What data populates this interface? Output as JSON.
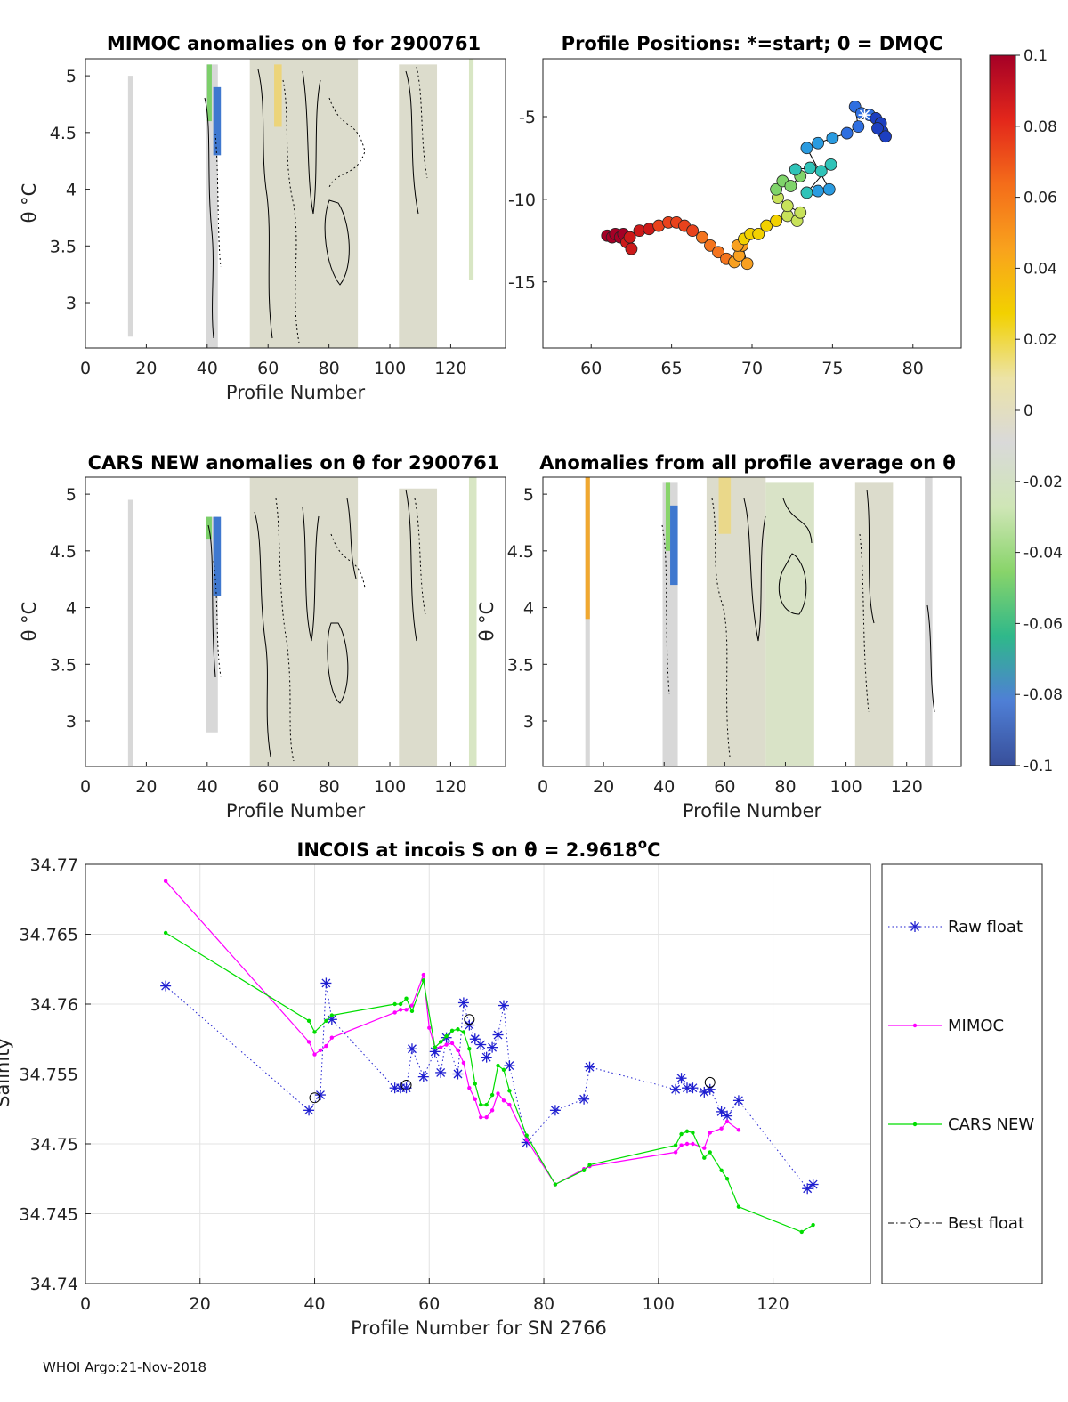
{
  "footer": "WHOI Argo:21-Nov-2018",
  "colorbar": {
    "ticks": [
      "0.1",
      "0.08",
      "0.06",
      "0.04",
      "0.02",
      "0",
      "-0.02",
      "-0.04",
      "-0.06",
      "-0.08",
      "-0.1"
    ],
    "stops": [
      "#a50026",
      "#e3271b",
      "#f46d1a",
      "#f9a21d",
      "#f2d100",
      "#ece3a6",
      "#d9d9d9",
      "#cfe6b6",
      "#88d46a",
      "#2fb88a",
      "#4f7fd6",
      "#384f9a"
    ]
  },
  "chart_data": [
    {
      "id": "mimoc",
      "type": "heatmap",
      "title": "MIMOC anomalies on θ  for 2900761",
      "xlabel": "Profile Number",
      "ylabel": "θ °C",
      "xlim": [
        0,
        138
      ],
      "ylim": [
        2.6,
        5.15
      ],
      "xticks": [
        "0",
        "20",
        "40",
        "60",
        "80",
        "100",
        "120"
      ],
      "yticks": [
        "3",
        "3.5",
        "4",
        "4.5",
        "5"
      ],
      "columns": [
        {
          "x0": 14,
          "x1": 15.5,
          "top": 5.0,
          "bottom": 2.7,
          "color": "#d8d8d8"
        },
        {
          "x0": 39.5,
          "x1": 43.5,
          "top": 5.1,
          "bottom": 2.6,
          "color": "#d8d8d8"
        },
        {
          "x0": 40,
          "x1": 41.5,
          "top": 5.1,
          "bottom": 4.6,
          "color": "#7ccf6a"
        },
        {
          "x0": 42,
          "x1": 44.5,
          "top": 4.9,
          "bottom": 4.3,
          "color": "#3f78cf"
        },
        {
          "x0": 54,
          "x1": 89.5,
          "top": 5.15,
          "bottom": 2.6,
          "color": "#dcdccc"
        },
        {
          "x0": 62,
          "x1": 64.5,
          "top": 5.1,
          "bottom": 4.55,
          "color": "#ecd47a"
        },
        {
          "x0": 103,
          "x1": 115.5,
          "top": 5.1,
          "bottom": 2.6,
          "color": "#dcdccc"
        },
        {
          "x0": 126,
          "x1": 127.5,
          "top": 5.15,
          "bottom": 3.2,
          "color": "#d8e6c4"
        }
      ]
    },
    {
      "id": "positions",
      "type": "scatter",
      "title": "Profile Positions: *=start; 0 = DMQC",
      "xlim": [
        57,
        83
      ],
      "ylim": [
        -19,
        -1.5
      ],
      "xticks": [
        "60",
        "65",
        "70",
        "75",
        "80"
      ],
      "yticks": [
        "-5",
        "-10",
        "-15"
      ],
      "points": [
        [
          61,
          -12.2
        ],
        [
          61.3,
          -12.3
        ],
        [
          61.5,
          -12.1
        ],
        [
          61.8,
          -12.3
        ],
        [
          62,
          -12.1
        ],
        [
          62.2,
          -12.6
        ],
        [
          62.5,
          -13
        ],
        [
          62.4,
          -12.3
        ],
        [
          63,
          -11.9
        ],
        [
          63.6,
          -11.8
        ],
        [
          64.2,
          -11.6
        ],
        [
          64.8,
          -11.4
        ],
        [
          65.3,
          -11.4
        ],
        [
          65.8,
          -11.6
        ],
        [
          66.3,
          -11.9
        ],
        [
          66.9,
          -12.3
        ],
        [
          67.4,
          -12.8
        ],
        [
          67.9,
          -13.2
        ],
        [
          68.4,
          -13.6
        ],
        [
          68.9,
          -13.8
        ],
        [
          69.2,
          -13.4
        ],
        [
          69.4,
          -12.8
        ],
        [
          69.7,
          -13.9
        ],
        [
          69.1,
          -12.8
        ],
        [
          69.5,
          -12.4
        ],
        [
          69.9,
          -12.1
        ],
        [
          70.4,
          -12.1
        ],
        [
          70.9,
          -11.6
        ],
        [
          71.5,
          -11.3
        ],
        [
          72.2,
          -11
        ],
        [
          72.8,
          -11.3
        ],
        [
          73,
          -10.8
        ],
        [
          72.2,
          -10.4
        ],
        [
          71.6,
          -9.9
        ],
        [
          71.5,
          -9.4
        ],
        [
          71.9,
          -8.9
        ],
        [
          72.4,
          -9.2
        ],
        [
          73,
          -8.6
        ],
        [
          72.7,
          -8.2
        ],
        [
          73.6,
          -8.1
        ],
        [
          74.3,
          -8.3
        ],
        [
          74.9,
          -7.9
        ],
        [
          73.4,
          -9.6
        ],
        [
          74.1,
          -9.5
        ],
        [
          74.8,
          -9.4
        ],
        [
          73.4,
          -6.9
        ],
        [
          74.1,
          -6.6
        ],
        [
          75,
          -6.3
        ],
        [
          75.9,
          -6
        ],
        [
          76.6,
          -5.6
        ],
        [
          76.4,
          -4.4
        ],
        [
          76.8,
          -4.8
        ],
        [
          77.3,
          -4.9
        ],
        [
          77.7,
          -5.1
        ],
        [
          78,
          -5.4
        ],
        [
          78.1,
          -5.9
        ],
        [
          78.3,
          -6.2
        ],
        [
          77.8,
          -5.7
        ]
      ],
      "start_marker": [
        77,
        -4.9
      ]
    },
    {
      "id": "cars",
      "type": "heatmap",
      "title": "CARS NEW anomalies on θ for 2900761",
      "xlabel": "Profile Number",
      "ylabel": "θ °C",
      "xlim": [
        0,
        138
      ],
      "ylim": [
        2.6,
        5.15
      ],
      "xticks": [
        "0",
        "20",
        "40",
        "60",
        "80",
        "100",
        "120"
      ],
      "yticks": [
        "3",
        "3.5",
        "4",
        "4.5",
        "5"
      ],
      "columns": [
        {
          "x0": 14,
          "x1": 15.5,
          "top": 4.95,
          "bottom": 2.6,
          "color": "#d8d8d8"
        },
        {
          "x0": 39.5,
          "x1": 43.5,
          "top": 4.8,
          "bottom": 2.9,
          "color": "#d8d8d8"
        },
        {
          "x0": 39.5,
          "x1": 41.5,
          "top": 4.8,
          "bottom": 4.6,
          "color": "#7ccf6a"
        },
        {
          "x0": 42,
          "x1": 44.5,
          "top": 4.8,
          "bottom": 4.1,
          "color": "#3f78cf"
        },
        {
          "x0": 54,
          "x1": 89.5,
          "top": 5.15,
          "bottom": 2.6,
          "color": "#dcdccc"
        },
        {
          "x0": 103,
          "x1": 115.5,
          "top": 5.05,
          "bottom": 2.6,
          "color": "#dcdccc"
        },
        {
          "x0": 126,
          "x1": 128.5,
          "top": 5.15,
          "bottom": 2.6,
          "color": "#d8e6c4"
        }
      ]
    },
    {
      "id": "allavg",
      "type": "heatmap",
      "title": "Anomalies from all profile average on θ",
      "xlabel": "Profile Number",
      "ylabel": "θ °C",
      "xlim": [
        0,
        138
      ],
      "ylim": [
        2.6,
        5.15
      ],
      "xticks": [
        "0",
        "20",
        "40",
        "60",
        "80",
        "100",
        "120"
      ],
      "yticks": [
        "3",
        "3.5",
        "4",
        "4.5",
        "5"
      ],
      "columns": [
        {
          "x0": 14,
          "x1": 15.5,
          "top": 5.15,
          "bottom": 2.6,
          "color": "#d8d8d8"
        },
        {
          "x0": 14,
          "x1": 15.5,
          "top": 5.15,
          "bottom": 3.9,
          "color": "#f0a830"
        },
        {
          "x0": 39.5,
          "x1": 44.5,
          "top": 5.1,
          "bottom": 2.6,
          "color": "#d8d8d8"
        },
        {
          "x0": 40.5,
          "x1": 42,
          "top": 5.1,
          "bottom": 4.5,
          "color": "#88d46a"
        },
        {
          "x0": 42,
          "x1": 44.5,
          "top": 4.9,
          "bottom": 4.2,
          "color": "#3f78cf"
        },
        {
          "x0": 54,
          "x1": 73.5,
          "top": 5.15,
          "bottom": 2.6,
          "color": "#dcdccc"
        },
        {
          "x0": 58,
          "x1": 62,
          "top": 5.15,
          "bottom": 4.65,
          "color": "#ead88a"
        },
        {
          "x0": 73.5,
          "x1": 89.5,
          "top": 5.1,
          "bottom": 2.6,
          "color": "#d9e3c7"
        },
        {
          "x0": 103,
          "x1": 115.5,
          "top": 5.1,
          "bottom": 2.6,
          "color": "#dcdccc"
        },
        {
          "x0": 126,
          "x1": 128.5,
          "top": 5.15,
          "bottom": 2.6,
          "color": "#d8d8d8"
        }
      ]
    },
    {
      "id": "incois",
      "type": "line",
      "title": "INCOIS at incois S on θ = 2.9618",
      "title_sup": "o",
      "title_unit": "C",
      "xlabel": "Profile Number for SN 2766",
      "ylabel": "Salinity",
      "xlim": [
        0,
        137
      ],
      "ylim": [
        34.74,
        34.77
      ],
      "xticks": [
        "0",
        "20",
        "40",
        "60",
        "80",
        "100",
        "120"
      ],
      "yticks": [
        "34.74",
        "34.745",
        "34.75",
        "34.755",
        "34.76",
        "34.765",
        "34.77"
      ],
      "series": [
        {
          "name": "Raw float",
          "color": "#1f1fd0",
          "x": [
            14,
            39,
            41,
            42,
            43,
            54,
            55,
            56,
            57,
            59,
            61,
            62,
            63,
            65,
            66,
            67,
            68,
            69,
            70,
            71,
            72,
            73,
            74,
            77,
            82,
            87,
            88,
            103,
            104,
            105,
            106,
            108,
            109,
            111,
            112,
            114,
            126,
            127
          ],
          "y": [
            34.7613,
            34.7524,
            34.7535,
            34.7615,
            34.7589,
            34.754,
            34.754,
            34.754,
            34.7568,
            34.7548,
            34.7566,
            34.7551,
            34.7576,
            34.755,
            34.7601,
            34.7585,
            34.7575,
            34.7571,
            34.7562,
            34.7569,
            34.7578,
            34.7599,
            34.7556,
            34.7501,
            34.7524,
            34.7532,
            34.7555,
            34.7539,
            34.7547,
            34.754,
            34.754,
            34.7537,
            34.7539,
            34.7523,
            34.752,
            34.7531,
            34.7468,
            34.7471
          ]
        },
        {
          "name": "MIMOC",
          "color": "#ff00ff",
          "x": [
            14,
            39,
            40,
            41,
            42,
            43,
            54,
            55,
            56,
            57,
            59,
            60,
            61,
            62,
            63,
            64,
            65,
            66,
            67,
            68,
            69,
            70,
            71,
            72,
            73,
            74,
            77,
            82,
            87,
            88,
            103,
            104,
            105,
            106,
            108,
            109,
            111,
            112,
            114
          ],
          "y": [
            34.7688,
            34.7573,
            34.7564,
            34.7567,
            34.757,
            34.7576,
            34.7594,
            34.7596,
            34.7596,
            34.7599,
            34.7621,
            34.7583,
            34.7569,
            34.7569,
            34.7571,
            34.7572,
            34.7567,
            34.7558,
            34.754,
            34.7532,
            34.7519,
            34.7519,
            34.7524,
            34.7536,
            34.7531,
            34.7528,
            34.7503,
            34.7471,
            34.7482,
            34.7484,
            34.7494,
            34.7499,
            34.75,
            34.75,
            34.7497,
            34.7508,
            34.7511,
            34.7516,
            34.751
          ]
        },
        {
          "name": "CARS NEW",
          "color": "#00dd00",
          "x": [
            14,
            39,
            40,
            42,
            43,
            54,
            55,
            56,
            57,
            59,
            61,
            62,
            63,
            64,
            65,
            66,
            67,
            68,
            69,
            70,
            71,
            72,
            73,
            74,
            77,
            82,
            87,
            88,
            103,
            104,
            105,
            106,
            108,
            109,
            111,
            112,
            114,
            125,
            127
          ],
          "y": [
            34.7651,
            34.7588,
            34.758,
            34.7588,
            34.7592,
            34.76,
            34.76,
            34.7604,
            34.7595,
            34.7617,
            34.7569,
            34.7573,
            34.7577,
            34.7581,
            34.7582,
            34.758,
            34.7568,
            34.7543,
            34.7528,
            34.7528,
            34.7535,
            34.7556,
            34.7553,
            34.7538,
            34.7506,
            34.7471,
            34.7481,
            34.7485,
            34.7499,
            34.7507,
            34.7509,
            34.7508,
            34.749,
            34.7494,
            34.7481,
            34.7475,
            34.7455,
            34.7437,
            34.7442
          ]
        },
        {
          "name": "Best float",
          "color": "#000000",
          "x": [
            40,
            56,
            67,
            109
          ],
          "y": [
            34.7533,
            34.7542,
            34.7589,
            34.7544
          ]
        }
      ]
    }
  ]
}
